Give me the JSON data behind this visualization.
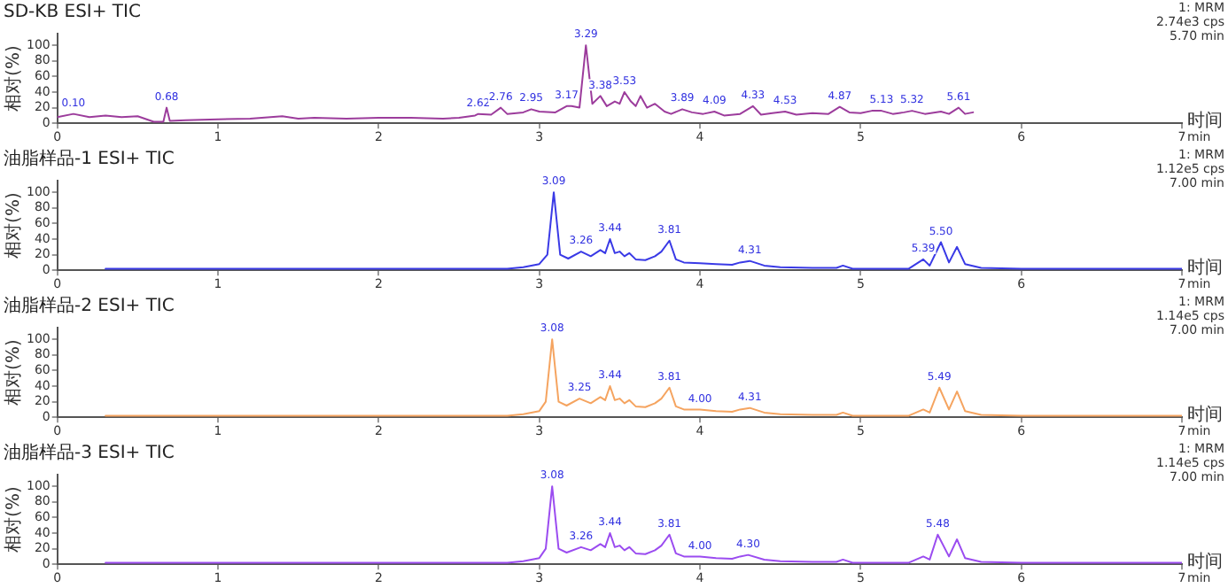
{
  "chart_data": [
    {
      "type": "line",
      "title": "SD-KB ESI+ TIC",
      "xlabel": "时间\nmin",
      "ylabel": "相对(%)",
      "xlim": [
        0,
        7
      ],
      "xticks": [
        0,
        1,
        2,
        3,
        4,
        5,
        6,
        7
      ],
      "ylim": [
        0,
        115
      ],
      "yticks": [
        0,
        20,
        40,
        60,
        80,
        100
      ],
      "grid": false,
      "legend": false,
      "marker": "none",
      "x": [
        0.0,
        0.1,
        0.2,
        0.3,
        0.4,
        0.5,
        0.6,
        0.66,
        0.68,
        0.7,
        0.8,
        1.0,
        1.2,
        1.4,
        1.5,
        1.6,
        1.8,
        2.0,
        2.2,
        2.4,
        2.5,
        2.6,
        2.62,
        2.7,
        2.76,
        2.8,
        2.9,
        2.95,
        3.0,
        3.1,
        3.17,
        3.2,
        3.25,
        3.29,
        3.33,
        3.38,
        3.42,
        3.47,
        3.5,
        3.53,
        3.57,
        3.6,
        3.63,
        3.67,
        3.72,
        3.78,
        3.82,
        3.89,
        3.95,
        4.02,
        4.09,
        4.15,
        4.25,
        4.33,
        4.38,
        4.45,
        4.53,
        4.6,
        4.7,
        4.8,
        4.87,
        4.93,
        5.0,
        5.07,
        5.13,
        5.2,
        5.27,
        5.32,
        5.4,
        5.5,
        5.55,
        5.61,
        5.65,
        5.7
      ],
      "series": [
        {
          "color": "#9c3c9c",
          "values": [
            8,
            12,
            8,
            10,
            8,
            9,
            2,
            2,
            20,
            3,
            4,
            5,
            6,
            9,
            6,
            7,
            6,
            7,
            7,
            6,
            7,
            10,
            12,
            11,
            20,
            12,
            14,
            18,
            15,
            14,
            22,
            22,
            20,
            100,
            25,
            35,
            22,
            28,
            25,
            40,
            28,
            22,
            35,
            20,
            25,
            15,
            12,
            18,
            14,
            12,
            15,
            10,
            12,
            22,
            11,
            13,
            15,
            11,
            13,
            12,
            21,
            14,
            13,
            16,
            16,
            12,
            14,
            16,
            12,
            15,
            12,
            20,
            12,
            14
          ]
        }
      ],
      "annotations": [
        "1: MRM",
        "2.74e3 cps",
        "5.70 min",
        {
          "text": "0.10",
          "x": 0.1,
          "y": 12
        },
        {
          "text": "0.68",
          "x": 0.68,
          "y": 20
        },
        {
          "text": "2.62",
          "x": 2.62,
          "y": 12
        },
        {
          "text": "2.76",
          "x": 2.76,
          "y": 20
        },
        {
          "text": "2.95",
          "x": 2.95,
          "y": 18
        },
        {
          "text": "3.17",
          "x": 3.17,
          "y": 22
        },
        {
          "text": "3.29",
          "x": 3.29,
          "y": 100
        },
        {
          "text": "3.38",
          "x": 3.38,
          "y": 35
        },
        {
          "text": "3.53",
          "x": 3.53,
          "y": 40
        },
        {
          "text": "3.89",
          "x": 3.89,
          "y": 18
        },
        {
          "text": "4.09",
          "x": 4.09,
          "y": 15
        },
        {
          "text": "4.33",
          "x": 4.33,
          "y": 22
        },
        {
          "text": "4.53",
          "x": 4.53,
          "y": 15
        },
        {
          "text": "4.87",
          "x": 4.87,
          "y": 21
        },
        {
          "text": "5.13",
          "x": 5.13,
          "y": 16
        },
        {
          "text": "5.32",
          "x": 5.32,
          "y": 16
        },
        {
          "text": "5.61",
          "x": 5.61,
          "y": 20
        }
      ]
    },
    {
      "type": "line",
      "title": "油脂样品-1 ESI+ TIC",
      "xlabel": "时间\nmin",
      "ylabel": "相对(%)",
      "xlim": [
        0,
        7
      ],
      "xticks": [
        0,
        1,
        2,
        3,
        4,
        5,
        6,
        7
      ],
      "ylim": [
        0,
        115
      ],
      "yticks": [
        0,
        20,
        40,
        60,
        80,
        100
      ],
      "grid": false,
      "legend": false,
      "marker": "none",
      "x": [
        0.3,
        1.0,
        2.0,
        2.8,
        2.9,
        3.0,
        3.05,
        3.09,
        3.13,
        3.18,
        3.26,
        3.32,
        3.38,
        3.41,
        3.44,
        3.47,
        3.5,
        3.53,
        3.56,
        3.6,
        3.66,
        3.72,
        3.76,
        3.81,
        3.85,
        3.9,
        4.0,
        4.1,
        4.2,
        4.25,
        4.31,
        4.4,
        4.5,
        4.7,
        4.85,
        4.89,
        4.95,
        5.3,
        5.39,
        5.43,
        5.5,
        5.55,
        5.6,
        5.65,
        5.75,
        6.0,
        7.0
      ],
      "series": [
        {
          "color": "#3a3ae6",
          "values": [
            2,
            2,
            2,
            2,
            4,
            8,
            20,
            100,
            20,
            15,
            24,
            18,
            26,
            22,
            40,
            22,
            24,
            18,
            22,
            14,
            13,
            18,
            24,
            38,
            14,
            10,
            9,
            8,
            7,
            10,
            12,
            6,
            4,
            3,
            3,
            6,
            2,
            2,
            14,
            6,
            36,
            10,
            30,
            8,
            3,
            2,
            2
          ]
        }
      ],
      "annotations": [
        "1: MRM",
        "1.12e5 cps",
        "7.00 min",
        {
          "text": "3.09",
          "x": 3.09,
          "y": 100
        },
        {
          "text": "3.26",
          "x": 3.26,
          "y": 24
        },
        {
          "text": "3.44",
          "x": 3.44,
          "y": 40
        },
        {
          "text": "3.81",
          "x": 3.81,
          "y": 38
        },
        {
          "text": "4.31",
          "x": 4.31,
          "y": 12
        },
        {
          "text": "5.39",
          "x": 5.39,
          "y": 14
        },
        {
          "text": "5.50",
          "x": 5.5,
          "y": 36
        }
      ]
    },
    {
      "type": "line",
      "title": "油脂样品-2 ESI+ TIC",
      "xlabel": "时间\nmin",
      "ylabel": "相对(%)",
      "xlim": [
        0,
        7
      ],
      "xticks": [
        0,
        1,
        2,
        3,
        4,
        5,
        6,
        7
      ],
      "ylim": [
        0,
        115
      ],
      "yticks": [
        0,
        20,
        40,
        60,
        80,
        100
      ],
      "grid": false,
      "legend": false,
      "marker": "none",
      "x": [
        0.3,
        1.0,
        2.0,
        2.8,
        2.9,
        3.0,
        3.04,
        3.08,
        3.12,
        3.17,
        3.25,
        3.32,
        3.38,
        3.41,
        3.44,
        3.47,
        3.5,
        3.53,
        3.56,
        3.6,
        3.66,
        3.72,
        3.76,
        3.81,
        3.85,
        3.9,
        4.0,
        4.1,
        4.2,
        4.25,
        4.31,
        4.4,
        4.5,
        4.7,
        4.85,
        4.89,
        4.95,
        5.3,
        5.39,
        5.43,
        5.49,
        5.55,
        5.6,
        5.65,
        5.75,
        6.0,
        7.0
      ],
      "series": [
        {
          "color": "#f5a460",
          "values": [
            2,
            2,
            2,
            2,
            4,
            8,
            20,
            100,
            20,
            15,
            24,
            18,
            26,
            22,
            40,
            22,
            24,
            18,
            22,
            14,
            13,
            18,
            24,
            38,
            14,
            10,
            10,
            8,
            7,
            10,
            12,
            6,
            4,
            3,
            3,
            6,
            2,
            2,
            10,
            6,
            38,
            10,
            33,
            8,
            3,
            2,
            2
          ]
        }
      ],
      "annotations": [
        "1: MRM",
        "1.14e5 cps",
        "7.00 min",
        {
          "text": "3.08",
          "x": 3.08,
          "y": 100
        },
        {
          "text": "3.25",
          "x": 3.25,
          "y": 24
        },
        {
          "text": "3.44",
          "x": 3.44,
          "y": 40
        },
        {
          "text": "3.81",
          "x": 3.81,
          "y": 38
        },
        {
          "text": "4.00",
          "x": 4.0,
          "y": 10
        },
        {
          "text": "4.31",
          "x": 4.31,
          "y": 12
        },
        {
          "text": "5.49",
          "x": 5.49,
          "y": 38
        }
      ]
    },
    {
      "type": "line",
      "title": "油脂样品-3 ESI+ TIC",
      "xlabel": "时间\nmin",
      "ylabel": "相对(%)",
      "xlim": [
        0,
        7
      ],
      "xticks": [
        0,
        1,
        2,
        3,
        4,
        5,
        6,
        7
      ],
      "ylim": [
        0,
        115
      ],
      "yticks": [
        0,
        20,
        40,
        60,
        80,
        100
      ],
      "grid": false,
      "legend": false,
      "marker": "none",
      "x": [
        0.3,
        1.0,
        2.0,
        2.8,
        2.9,
        3.0,
        3.04,
        3.08,
        3.12,
        3.17,
        3.26,
        3.32,
        3.38,
        3.41,
        3.44,
        3.47,
        3.5,
        3.53,
        3.56,
        3.6,
        3.66,
        3.72,
        3.76,
        3.81,
        3.85,
        3.9,
        4.0,
        4.1,
        4.2,
        4.25,
        4.3,
        4.4,
        4.5,
        4.7,
        4.85,
        4.89,
        4.95,
        5.3,
        5.39,
        5.43,
        5.48,
        5.55,
        5.6,
        5.65,
        5.75,
        6.0,
        7.0
      ],
      "series": [
        {
          "color": "#9b4cf0",
          "values": [
            2,
            2,
            2,
            2,
            4,
            8,
            20,
            100,
            20,
            15,
            22,
            18,
            26,
            22,
            40,
            22,
            24,
            18,
            22,
            14,
            13,
            18,
            24,
            38,
            14,
            10,
            10,
            8,
            7,
            10,
            12,
            6,
            4,
            3,
            3,
            6,
            2,
            2,
            10,
            6,
            38,
            10,
            32,
            8,
            3,
            2,
            2
          ]
        }
      ],
      "annotations": [
        "1: MRM",
        "1.14e5 cps",
        "7.00 min",
        {
          "text": "3.08",
          "x": 3.08,
          "y": 100
        },
        {
          "text": "3.26",
          "x": 3.26,
          "y": 22
        },
        {
          "text": "3.44",
          "x": 3.44,
          "y": 40
        },
        {
          "text": "3.81",
          "x": 3.81,
          "y": 38
        },
        {
          "text": "4.00",
          "x": 4.0,
          "y": 10
        },
        {
          "text": "4.30",
          "x": 4.3,
          "y": 12
        },
        {
          "text": "5.48",
          "x": 5.48,
          "y": 38
        }
      ]
    }
  ]
}
